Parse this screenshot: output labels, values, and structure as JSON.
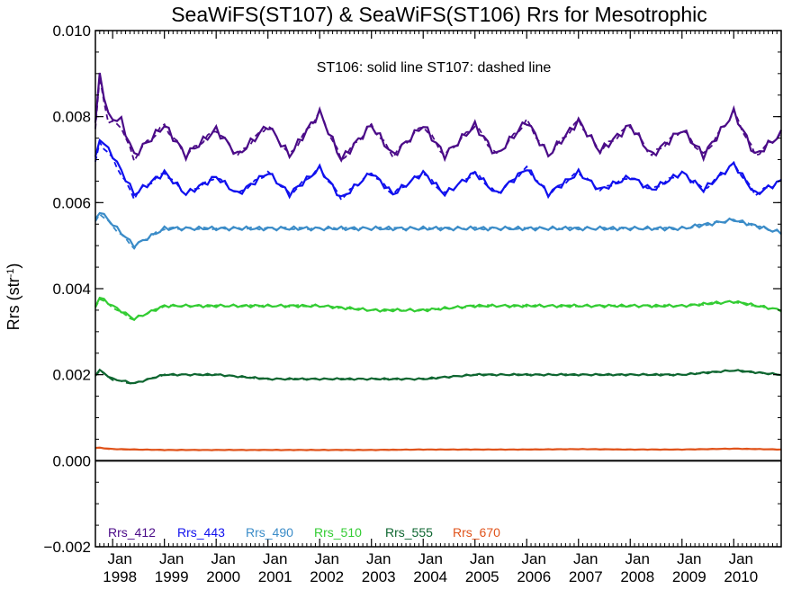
{
  "chart_data": {
    "type": "line",
    "title": "SeaWiFS(ST107) & SeaWiFS(ST106)  Rrs for Mesotrophic",
    "ylabel": "Rrs (str",
    "ylabel_sup": "-1",
    "ylabel_close": ")",
    "annotation": "ST106: solid line   ST107: dashed line",
    "ylim": [
      -0.002,
      0.01
    ],
    "yticks": [
      "0.010",
      "0.008",
      "0.006",
      "0.004",
      "0.002",
      "0.000",
      "−0.002"
    ],
    "ytick_values": [
      0.01,
      0.008,
      0.006,
      0.004,
      0.002,
      0.0,
      -0.002
    ],
    "xlim": [
      "1997-09",
      "2010-12"
    ],
    "xticks": [
      {
        "month": "Jan",
        "year": "1998"
      },
      {
        "month": "Jan",
        "year": "1999"
      },
      {
        "month": "Jan",
        "year": "2000"
      },
      {
        "month": "Jan",
        "year": "2001"
      },
      {
        "month": "Jan",
        "year": "2002"
      },
      {
        "month": "Jan",
        "year": "2003"
      },
      {
        "month": "Jan",
        "year": "2004"
      },
      {
        "month": "Jan",
        "year": "2005"
      },
      {
        "month": "Jan",
        "year": "2006"
      },
      {
        "month": "Jan",
        "year": "2007"
      },
      {
        "month": "Jan",
        "year": "2008"
      },
      {
        "month": "Jan",
        "year": "2009"
      },
      {
        "month": "Jan",
        "year": "2010"
      }
    ],
    "line_styles": {
      "ST106": "solid",
      "ST107": "dashed"
    },
    "series": [
      {
        "name": "Rrs_412",
        "color": "#4b0b88",
        "mean": 0.0075,
        "amp": 0.00037,
        "start_boost": 0.0015,
        "x_cue": [
          "1997-09",
          "1997-10",
          "1997-11",
          "1997-12",
          "1998-03",
          "1998-06",
          "1999-01",
          "1999-06",
          "2000-01",
          "2000-06",
          "2001-01",
          "2001-06",
          "2002-01",
          "2002-06",
          "2003-01",
          "2003-06",
          "2004-01",
          "2004-06",
          "2005-01",
          "2005-06",
          "2006-01",
          "2006-06",
          "2007-01",
          "2007-06",
          "2008-01",
          "2008-06",
          "2009-01",
          "2009-06",
          "2010-01",
          "2010-06",
          "2010-12"
        ],
        "y_cue": [
          0.0078,
          0.009,
          0.0085,
          0.008,
          0.0079,
          0.0071,
          0.0078,
          0.0071,
          0.0077,
          0.0071,
          0.0078,
          0.0071,
          0.0081,
          0.007,
          0.0078,
          0.0071,
          0.0078,
          0.0071,
          0.0078,
          0.0071,
          0.0079,
          0.0071,
          0.0079,
          0.0072,
          0.0078,
          0.0071,
          0.0077,
          0.0071,
          0.0081,
          0.0071,
          0.0076
        ]
      },
      {
        "name": "Rrs_443",
        "color": "#1010ee",
        "mean": 0.0064,
        "amp": 0.00027,
        "start_boost": 0.0011,
        "x_cue": [
          "1997-09",
          "1997-10",
          "1998-01",
          "1998-06",
          "1999-01",
          "1999-06",
          "2000-01",
          "2000-06",
          "2001-01",
          "2001-06",
          "2002-01",
          "2002-06",
          "2003-01",
          "2003-06",
          "2004-01",
          "2004-06",
          "2005-01",
          "2005-06",
          "2006-01",
          "2006-06",
          "2007-01",
          "2007-06",
          "2008-01",
          "2008-06",
          "2009-01",
          "2009-06",
          "2010-01",
          "2010-06",
          "2010-12"
        ],
        "y_cue": [
          0.007,
          0.0075,
          0.0071,
          0.0062,
          0.0067,
          0.0062,
          0.0066,
          0.0062,
          0.0067,
          0.0062,
          0.0068,
          0.0061,
          0.0067,
          0.0062,
          0.0067,
          0.0062,
          0.0067,
          0.0062,
          0.0068,
          0.0062,
          0.0067,
          0.0063,
          0.0066,
          0.0063,
          0.0067,
          0.0063,
          0.0069,
          0.0062,
          0.0065
        ]
      },
      {
        "name": "Rrs_490",
        "color": "#3b8cc8",
        "mean": 0.0051,
        "amp": 0.00018,
        "start_boost": 0.0006,
        "x_cue": [
          "1997-09",
          "1997-10",
          "1998-01",
          "1998-06",
          "1999-01",
          "2000-01",
          "2001-01",
          "2002-01",
          "2003-01",
          "2004-01",
          "2005-01",
          "2006-01",
          "2007-01",
          "2008-01",
          "2009-01",
          "2010-01",
          "2010-12"
        ],
        "y_cue": [
          0.0056,
          0.0058,
          0.0055,
          0.005,
          0.0054,
          0.0054,
          0.0054,
          0.0054,
          0.0054,
          0.0054,
          0.0054,
          0.0054,
          0.0054,
          0.0054,
          0.0054,
          0.0056,
          0.0053
        ]
      },
      {
        "name": "Rrs_510",
        "color": "#33cc33",
        "mean": 0.0034,
        "amp": 0.00013,
        "start_boost": 0.0004,
        "x_cue": [
          "1997-09",
          "1997-10",
          "1998-01",
          "1998-06",
          "1999-01",
          "2000-01",
          "2001-01",
          "2002-01",
          "2003-01",
          "2004-01",
          "2005-01",
          "2006-01",
          "2007-01",
          "2008-01",
          "2009-01",
          "2010-01",
          "2010-12"
        ],
        "y_cue": [
          0.0036,
          0.0038,
          0.0036,
          0.0033,
          0.0036,
          0.0036,
          0.0036,
          0.0036,
          0.0035,
          0.0035,
          0.0036,
          0.0036,
          0.0036,
          0.0036,
          0.0036,
          0.0037,
          0.0035
        ]
      },
      {
        "name": "Rrs_555",
        "color": "#0e6630",
        "mean": 0.0019,
        "amp": 8e-05,
        "start_boost": 0.0002,
        "x_cue": [
          "1997-09",
          "1997-10",
          "1998-01",
          "1998-06",
          "1999-01",
          "2000-01",
          "2001-01",
          "2002-01",
          "2003-01",
          "2004-01",
          "2005-01",
          "2006-01",
          "2007-01",
          "2008-01",
          "2009-01",
          "2010-01",
          "2010-12"
        ],
        "y_cue": [
          0.002,
          0.0021,
          0.0019,
          0.0018,
          0.002,
          0.002,
          0.0019,
          0.0019,
          0.0019,
          0.0019,
          0.002,
          0.002,
          0.002,
          0.002,
          0.002,
          0.0021,
          0.002
        ]
      },
      {
        "name": "Rrs_670",
        "color": "#e0531b",
        "mean": 0.00025,
        "amp": 2e-05,
        "start_boost": 5e-05,
        "x_cue": [
          "1997-09",
          "1997-10",
          "1998-01",
          "1999-01",
          "2000-01",
          "2001-01",
          "2002-01",
          "2003-01",
          "2004-01",
          "2005-01",
          "2006-01",
          "2007-01",
          "2008-01",
          "2009-01",
          "2010-01",
          "2010-12"
        ],
        "y_cue": [
          0.0003,
          0.0003,
          0.00027,
          0.00025,
          0.00025,
          0.00025,
          0.00025,
          0.00025,
          0.00026,
          0.00026,
          0.00026,
          0.00027,
          0.00026,
          0.00026,
          0.00028,
          0.00026
        ]
      }
    ],
    "zero_line": 0.0,
    "grid": false,
    "legend_position": "bottom-left"
  }
}
